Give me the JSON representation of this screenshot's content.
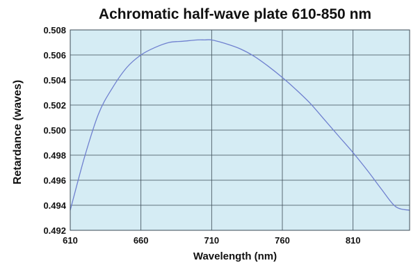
{
  "chart_data": {
    "type": "line",
    "title": "Achromatic half-wave plate 610-850 nm",
    "xlabel": "Wavelength (nm)",
    "ylabel": "Retardance (waves)",
    "xlim": [
      610,
      850
    ],
    "ylim": [
      0.492,
      0.508
    ],
    "x_ticks": [
      "610",
      "660",
      "710",
      "760",
      "810"
    ],
    "y_ticks": [
      "0.492",
      "0.494",
      "0.496",
      "0.498",
      "0.500",
      "0.502",
      "0.504",
      "0.506",
      "0.508"
    ],
    "grid": true,
    "legend": "none",
    "series": [
      {
        "x": [
          610,
          620,
          630,
          640,
          650,
          660,
          670,
          680,
          690,
          700,
          705,
          710,
          720,
          730,
          740,
          750,
          760,
          770,
          780,
          790,
          800,
          810,
          820,
          830,
          840,
          850
        ],
        "y": [
          0.4936,
          0.4978,
          0.5013,
          0.5034,
          0.505,
          0.506,
          0.5066,
          0.507,
          0.5071,
          0.5072,
          0.5072,
          0.5072,
          0.5069,
          0.5065,
          0.5059,
          0.5051,
          0.5042,
          0.5032,
          0.5021,
          0.5008,
          0.4995,
          0.4982,
          0.4968,
          0.4953,
          0.4939,
          0.4936
        ],
        "color": "#6f80cf"
      }
    ],
    "colors": {
      "plot_background": "#d5ecf4",
      "grid": "#3a4a55",
      "line": "#6f80cf"
    }
  }
}
